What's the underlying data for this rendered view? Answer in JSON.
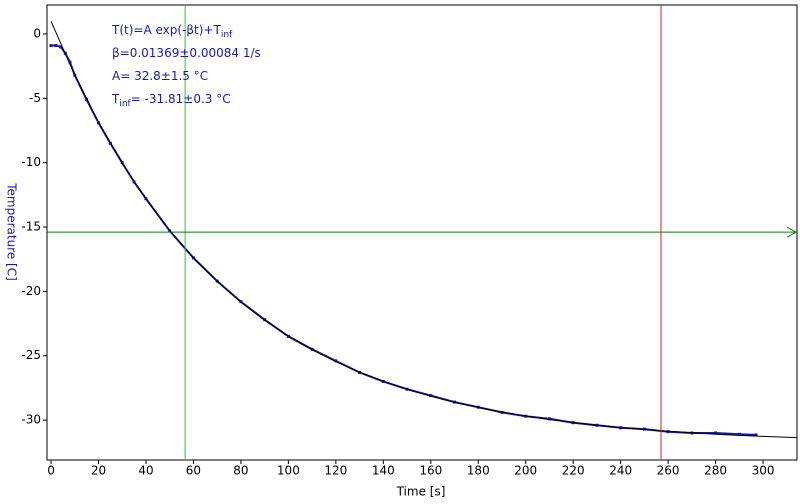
{
  "chart_data": {
    "type": "line",
    "xlabel": "Time [s]",
    "ylabel": "Temperature [C]",
    "xlim": [
      -1.7,
      314.3
    ],
    "ylim": [
      -33.1,
      2.25
    ],
    "xticks": [
      0,
      20,
      40,
      60,
      80,
      100,
      120,
      140,
      160,
      180,
      200,
      220,
      240,
      260,
      280,
      300
    ],
    "yticks": [
      0,
      -5,
      -10,
      -15,
      -20,
      -25,
      -30
    ],
    "series": [
      {
        "color": "#1a1aa8",
        "marker": "square",
        "x": [
          0,
          2,
          4,
          6,
          8,
          10,
          15,
          20,
          25,
          30,
          35,
          40,
          50,
          60,
          70,
          80,
          90,
          100,
          110,
          120,
          130,
          140,
          150,
          160,
          170,
          180,
          190,
          200,
          210,
          220,
          230,
          240,
          250,
          260,
          270,
          280,
          290,
          297
        ],
        "values": [
          -0.9,
          -0.9,
          -1.0,
          -1.5,
          -2.2,
          -3.2,
          -5.1,
          -6.9,
          -8.5,
          -10.0,
          -11.5,
          -12.8,
          -15.3,
          -17.4,
          -19.2,
          -20.8,
          -22.2,
          -23.5,
          -24.5,
          -25.4,
          -26.3,
          -27.0,
          -27.6,
          -28.1,
          -28.6,
          -29.0,
          -29.4,
          -29.7,
          -29.9,
          -30.2,
          -30.4,
          -30.6,
          -30.7,
          -30.9,
          -31.0,
          -31.0,
          -31.1,
          -31.15
        ]
      },
      {
        "color": "#000000",
        "marker": "none",
        "x": [
          0,
          10,
          20,
          30,
          40,
          50,
          60,
          70,
          80,
          90,
          100,
          110,
          120,
          130,
          140,
          150,
          160,
          170,
          180,
          190,
          200,
          210,
          220,
          230,
          240,
          250,
          260,
          270,
          280,
          290,
          300,
          310,
          314
        ],
        "values": [
          0.99,
          -3.21,
          -6.86,
          -10.05,
          -12.84,
          -15.26,
          -17.38,
          -19.22,
          -20.83,
          -22.24,
          -23.46,
          -24.53,
          -25.46,
          -26.27,
          -26.98,
          -27.6,
          -28.14,
          -28.61,
          -29.02,
          -29.37,
          -29.68,
          -29.96,
          -30.19,
          -30.4,
          -30.58,
          -30.74,
          -30.87,
          -30.99,
          -31.1,
          -31.19,
          -31.27,
          -31.34,
          -31.36
        ]
      }
    ],
    "vertical_cursors": [
      {
        "x": 56.5,
        "color": "#22cc22"
      },
      {
        "x": 257,
        "color": "#dd2222"
      }
    ],
    "horizontal_cursor": {
      "y": -15.4,
      "color": "#117711"
    },
    "annotations": [
      {
        "text": "T(t)=A exp(-βt)+T",
        "sub": "inf"
      },
      {
        "text": "β=0.01369±0.00084 1/s"
      },
      {
        "text": "A= 32.8±1.5 °C"
      },
      {
        "text": "T",
        "sub": "inf",
        "after": "= -31.81±0.3 °C"
      }
    ]
  }
}
